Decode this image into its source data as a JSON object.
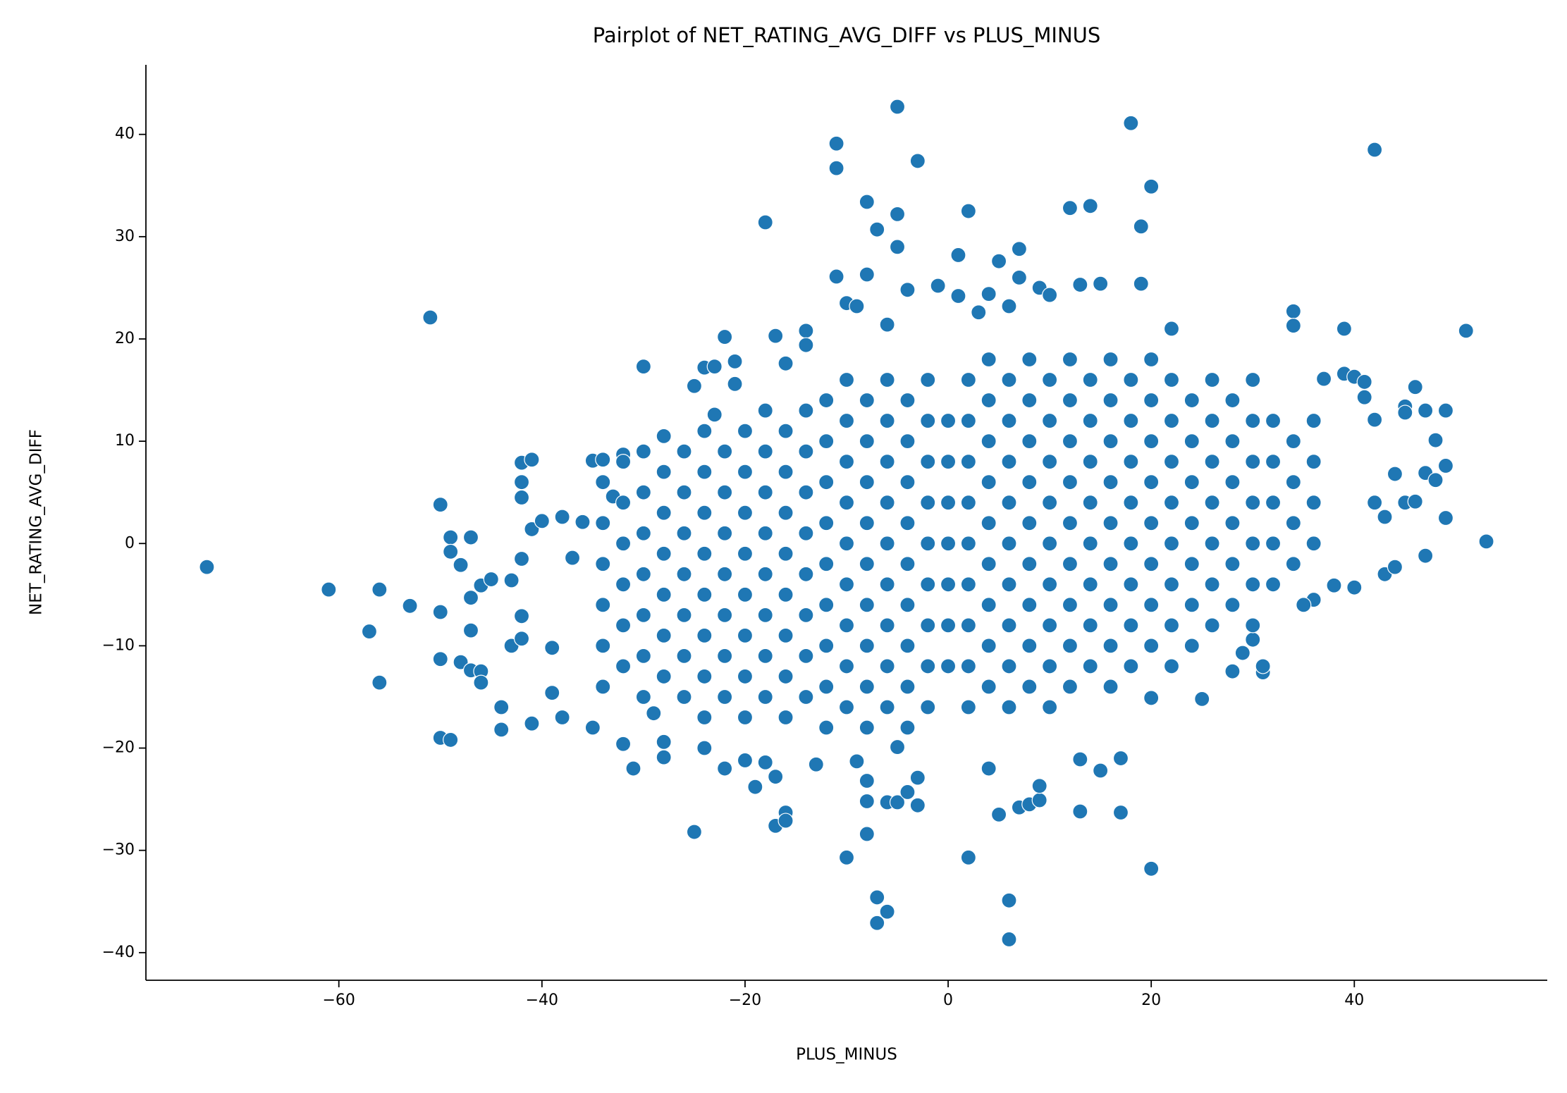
{
  "chart_data": {
    "type": "scatter",
    "title": "Pairplot of NET_RATING_AVG_DIFF vs PLUS_MINUS",
    "x_label": "PLUS_MINUS",
    "y_label": "NET_RATING_AVG_DIFF",
    "color": "#1f77b4",
    "xlim": [
      -79,
      59
    ],
    "ylim": [
      -42.7,
      46.8
    ],
    "xticks": [
      {
        "value": -60,
        "label": "−60"
      },
      {
        "value": -40,
        "label": "−40"
      },
      {
        "value": -20,
        "label": "−20"
      },
      0,
      20,
      40
    ],
    "yticks": [
      {
        "value": -40,
        "label": "−40"
      },
      {
        "value": -30,
        "label": "−30"
      },
      {
        "value": -20,
        "label": "−20"
      },
      {
        "value": -10,
        "label": "−10"
      },
      0,
      10,
      20,
      30,
      40
    ],
    "x": [
      -73,
      -61,
      -57,
      -56,
      -56,
      -53,
      -51,
      -50,
      -50,
      -50,
      -50,
      -49,
      -49,
      -49,
      -48,
      -48,
      -47,
      -47,
      -47,
      -47,
      -46,
      -46,
      -46,
      -45,
      -44,
      -44,
      -43,
      -43,
      -42,
      -42,
      -42,
      -42,
      -42,
      -42,
      -41,
      -41,
      -41,
      -40,
      -39,
      -39,
      -38,
      -38,
      -37,
      -36,
      -35,
      -35,
      -34,
      -33,
      -32,
      -32,
      -31,
      -30,
      -29,
      -28,
      -28,
      -28,
      -25,
      -25,
      -24,
      -24,
      -23,
      -23,
      -22,
      -22,
      -21,
      -21,
      -20,
      -19,
      -18,
      -18,
      -17,
      -17,
      -17,
      -16,
      -16,
      -16,
      -14,
      -14,
      -13,
      -11,
      -11,
      -11,
      -10,
      -10,
      -9,
      -9,
      -8,
      -8,
      -8,
      -8,
      -8,
      -7,
      -7,
      -7,
      -6,
      -6,
      -6,
      -5,
      -5,
      -5,
      -5,
      -5,
      -4,
      -4,
      -3,
      -3,
      -3,
      -1,
      1,
      1,
      2,
      2,
      3,
      4,
      4,
      5,
      5,
      6,
      6,
      6,
      7,
      7,
      7,
      8,
      9,
      9,
      9,
      10,
      12,
      13,
      13,
      13,
      14,
      15,
      15,
      17,
      17,
      18,
      19,
      19,
      20,
      20,
      20,
      22,
      25,
      34,
      34,
      37,
      39,
      39,
      40,
      41,
      41,
      42,
      42,
      42,
      43,
      43,
      44,
      44,
      45,
      45,
      45,
      46,
      46,
      47,
      47,
      47,
      48,
      48,
      49,
      49,
      49,
      51,
      53,
      38,
      40,
      36,
      35,
      31,
      31,
      29,
      30,
      28,
      -34,
      -34,
      -34,
      -34,
      -34,
      -34,
      -32,
      -32,
      -32,
      -32,
      -32,
      -32,
      -30,
      -30,
      -30,
      -30,
      -30,
      -30,
      -30,
      -28,
      -28,
      -28,
      -28,
      -28,
      -28,
      -26,
      -26,
      -26,
      -26,
      -26,
      -26,
      -26,
      -24,
      -24,
      -24,
      -24,
      -24,
      -24,
      -24,
      -24,
      -22,
      -22,
      -22,
      -22,
      -22,
      -22,
      -22,
      -20,
      -20,
      -20,
      -20,
      -20,
      -20,
      -20,
      -20,
      -18,
      -18,
      -18,
      -18,
      -18,
      -18,
      -18,
      -18,
      -16,
      -16,
      -16,
      -16,
      -16,
      -16,
      -16,
      -16,
      -14,
      -14,
      -14,
      -14,
      -14,
      -14,
      -14,
      -14,
      -12,
      -12,
      -12,
      -12,
      -12,
      -12,
      -12,
      -12,
      -12,
      -10,
      -10,
      -10,
      -10,
      -10,
      -10,
      -10,
      -10,
      -10,
      -8,
      -8,
      -8,
      -8,
      -8,
      -8,
      -8,
      -8,
      -8,
      -6,
      -6,
      -6,
      -6,
      -6,
      -6,
      -6,
      -6,
      -6,
      -4,
      -4,
      -4,
      -4,
      -4,
      -4,
      -4,
      -4,
      -4,
      -2,
      -2,
      -2,
      -2,
      -2,
      -2,
      -2,
      -2,
      -2,
      0,
      0,
      0,
      0,
      0,
      0,
      0,
      2,
      2,
      2,
      2,
      2,
      2,
      2,
      2,
      2,
      4,
      4,
      4,
      4,
      4,
      4,
      4,
      4,
      4,
      6,
      6,
      6,
      6,
      6,
      6,
      6,
      6,
      6,
      8,
      8,
      8,
      8,
      8,
      8,
      8,
      8,
      8,
      10,
      10,
      10,
      10,
      10,
      10,
      10,
      10,
      10,
      12,
      12,
      12,
      12,
      12,
      12,
      12,
      12,
      12,
      14,
      14,
      14,
      14,
      14,
      14,
      14,
      14,
      16,
      16,
      16,
      16,
      16,
      16,
      16,
      16,
      16,
      18,
      18,
      18,
      18,
      18,
      18,
      18,
      18,
      20,
      20,
      20,
      20,
      20,
      20,
      20,
      20,
      22,
      22,
      22,
      22,
      22,
      22,
      22,
      22,
      24,
      24,
      24,
      24,
      24,
      24,
      24,
      26,
      26,
      26,
      26,
      26,
      26,
      26,
      28,
      28,
      28,
      28,
      28,
      28,
      30,
      30,
      30,
      30,
      30,
      30,
      30,
      32,
      32,
      32,
      32,
      32,
      34,
      34,
      34,
      34,
      36,
      36,
      36,
      36
    ],
    "values": [
      -2.3,
      -4.5,
      -8.6,
      -13.6,
      -4.5,
      -6.1,
      22.1,
      3.8,
      -6.7,
      -11.3,
      -19,
      -19.2,
      0.6,
      -0.8,
      -2.1,
      -11.6,
      0.6,
      -5.3,
      -8.5,
      -12.4,
      -12.5,
      -13.6,
      -4.1,
      -3.5,
      -16,
      -18.2,
      -10,
      -3.6,
      7.9,
      6,
      4.5,
      -1.5,
      -9.3,
      -7.1,
      8.2,
      1.4,
      -17.6,
      2.2,
      -10.2,
      -14.6,
      2.6,
      -17,
      -1.4,
      2.1,
      8.1,
      -18,
      8.2,
      4.6,
      8.7,
      -19.6,
      -22,
      17.3,
      -16.6,
      10.5,
      -19.4,
      -20.9,
      15.4,
      -28.2,
      17.2,
      -20,
      17.3,
      12.6,
      20.2,
      -22,
      17.8,
      15.6,
      -21.2,
      -23.8,
      31.4,
      -21.4,
      -27.6,
      -22.8,
      20.3,
      -26.3,
      -27.1,
      17.6,
      20.8,
      19.4,
      -21.6,
      39.1,
      36.7,
      26.1,
      -30.7,
      23.5,
      23.2,
      -21.3,
      33.4,
      26.3,
      -25.2,
      -28.4,
      -23.2,
      30.7,
      -34.6,
      -37.1,
      -36,
      -25.3,
      21.4,
      42.7,
      32.2,
      29,
      -25.3,
      -19.9,
      24.8,
      -24.3,
      37.4,
      -22.9,
      -25.6,
      25.2,
      28.2,
      24.2,
      32.5,
      -30.7,
      22.6,
      -22,
      24.4,
      27.6,
      -26.5,
      -34.9,
      -38.7,
      23.2,
      28.8,
      26,
      -25.8,
      -25.5,
      -25.1,
      -23.7,
      25,
      24.3,
      32.8,
      -26.2,
      -21.1,
      25.3,
      33,
      25.4,
      -22.2,
      -26.3,
      -21,
      41.1,
      31,
      25.4,
      34.9,
      -31.8,
      -15.1,
      21,
      -15.2,
      22.7,
      21.3,
      16.1,
      21,
      16.6,
      16.3,
      15.8,
      14.3,
      38.5,
      12.1,
      4,
      -3,
      2.6,
      -2.3,
      6.8,
      13.4,
      12.8,
      4,
      15.3,
      4.1,
      13,
      6.9,
      -1.2,
      10.1,
      6.2,
      13,
      7.6,
      2.5,
      20.8,
      0.2,
      -4.1,
      -4.3,
      -5.5,
      -6,
      -12.6,
      -12,
      -10.7,
      -9.4,
      -12.5,
      -14,
      -10,
      -6,
      -2,
      2,
      6,
      -12,
      -8,
      -4,
      0,
      4,
      8,
      -15,
      -11,
      -7,
      -3,
      1,
      5,
      9,
      -13,
      -9,
      -5,
      -1,
      3,
      7,
      -15,
      -11,
      -7,
      -3,
      1,
      5,
      9,
      -17,
      -13,
      -9,
      -5,
      -1,
      3,
      7,
      11,
      -15,
      -11,
      -7,
      -3,
      1,
      5,
      9,
      -17,
      -13,
      -9,
      -5,
      -1,
      3,
      7,
      11,
      -15,
      -11,
      -7,
      -3,
      1,
      5,
      9,
      13,
      -17,
      -13,
      -9,
      -5,
      -1,
      3,
      7,
      11,
      -15,
      -11,
      -7,
      -3,
      1,
      5,
      9,
      13,
      -18,
      -14,
      -10,
      -6,
      -2,
      2,
      6,
      10,
      14,
      -16,
      -12,
      -8,
      -4,
      0,
      4,
      8,
      12,
      16,
      -18,
      -14,
      -10,
      -6,
      -2,
      2,
      6,
      10,
      14,
      -16,
      -12,
      -8,
      -4,
      0,
      4,
      8,
      12,
      16,
      -18,
      -14,
      -10,
      -6,
      -2,
      2,
      6,
      10,
      14,
      -16,
      -12,
      -8,
      -4,
      0,
      4,
      8,
      12,
      16,
      -12,
      -8,
      -4,
      0,
      4,
      8,
      12,
      -16,
      -12,
      -8,
      -4,
      0,
      4,
      8,
      12,
      16,
      -14,
      -10,
      -6,
      -2,
      2,
      6,
      10,
      14,
      18,
      -16,
      -12,
      -8,
      -4,
      0,
      4,
      8,
      12,
      16,
      -14,
      -10,
      -6,
      -2,
      2,
      6,
      10,
      14,
      18,
      -16,
      -12,
      -8,
      -4,
      0,
      4,
      8,
      12,
      16,
      -14,
      -10,
      -6,
      -2,
      2,
      6,
      10,
      14,
      18,
      -12,
      -8,
      -4,
      0,
      4,
      8,
      12,
      16,
      -14,
      -10,
      -6,
      -2,
      2,
      6,
      10,
      14,
      18,
      -12,
      -8,
      -4,
      0,
      4,
      8,
      12,
      16,
      -10,
      -6,
      -2,
      2,
      6,
      10,
      14,
      18,
      -12,
      -8,
      -4,
      0,
      4,
      8,
      12,
      16,
      -10,
      -6,
      -2,
      2,
      6,
      10,
      14,
      -8,
      -4,
      0,
      4,
      8,
      12,
      16,
      -6,
      -2,
      2,
      6,
      10,
      14,
      -8,
      -4,
      0,
      4,
      8,
      12,
      16,
      -4,
      0,
      4,
      8,
      12,
      -2,
      2,
      6,
      10,
      0,
      4,
      8,
      12
    ]
  }
}
